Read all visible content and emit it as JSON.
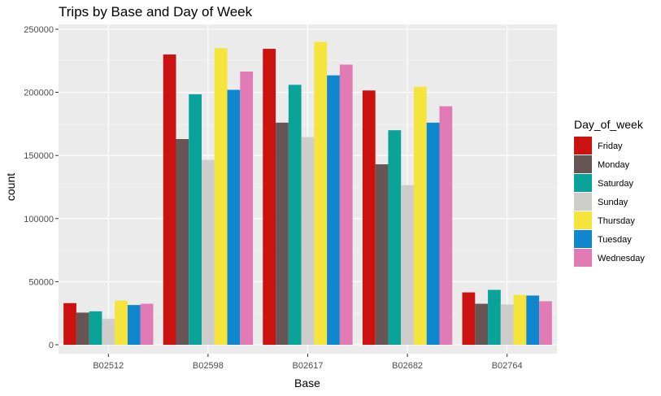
{
  "chart_data": {
    "type": "bar",
    "title": "Trips by Base and Day of Week",
    "xlabel": "Base",
    "ylabel": "count",
    "categories": [
      "B02512",
      "B02598",
      "B02617",
      "B02682",
      "B02764"
    ],
    "ylim": [
      0,
      250000
    ],
    "yticks": [
      "0",
      "50000",
      "100000",
      "150000",
      "200000",
      "250000"
    ],
    "legend_title": "Day_of_week",
    "legend_position": "right",
    "grid": true,
    "series": [
      {
        "name": "Friday",
        "color": "#cc1111",
        "values": [
          33000,
          230000,
          234500,
          201500,
          41500
        ]
      },
      {
        "name": "Monday",
        "color": "#675555",
        "values": [
          25500,
          163000,
          176000,
          143000,
          32500
        ]
      },
      {
        "name": "Saturday",
        "color": "#0aa39a",
        "values": [
          26500,
          198500,
          206000,
          170000,
          43500
        ]
      },
      {
        "name": "Sunday",
        "color": "#cfcccc",
        "values": [
          20500,
          146500,
          164500,
          126500,
          32000
        ]
      },
      {
        "name": "Thursday",
        "color": "#f4e43c",
        "values": [
          35000,
          235000,
          240000,
          204500,
          39500
        ]
      },
      {
        "name": "Tuesday",
        "color": "#0e87cf",
        "values": [
          31500,
          202000,
          213500,
          176000,
          39000
        ]
      },
      {
        "name": "Wednesday",
        "color": "#e17ab5",
        "values": [
          32500,
          216500,
          222000,
          189000,
          34500
        ]
      }
    ]
  }
}
